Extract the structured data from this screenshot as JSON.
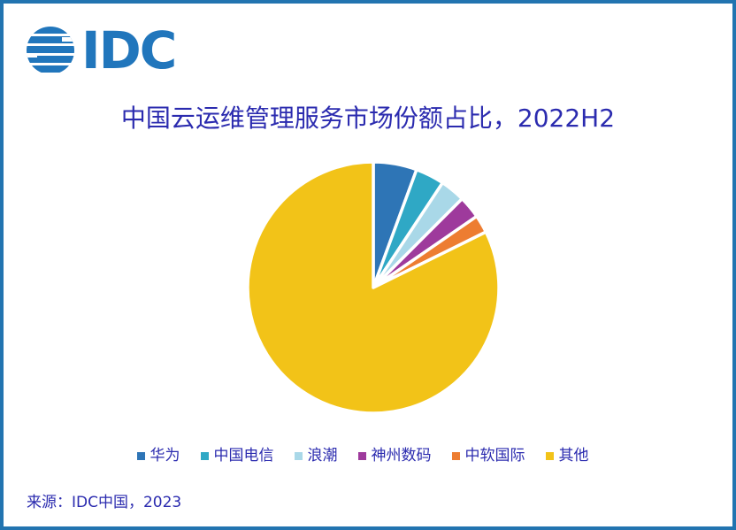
{
  "logo": {
    "text": "IDC"
  },
  "chart_data": {
    "type": "pie",
    "title": "中国云运维管理服务市场份额占比，2022H2",
    "unit": "percent (share, estimated from slice angles; no data labels shown)",
    "start_angle_deg": 0,
    "direction": "clockwise",
    "legend_position": "bottom",
    "categories": [
      "华为",
      "中国电信",
      "浪潮",
      "神州数码",
      "中软国际",
      "其他"
    ],
    "values": [
      5.6,
      3.7,
      3.2,
      2.9,
      2.3,
      82.3
    ],
    "colors": [
      "#2E75B6",
      "#2FA8C5",
      "#A9D8E8",
      "#9E3A9C",
      "#ED7D31",
      "#F2C318"
    ]
  },
  "footer": {
    "source": "来源：IDC中国，2023"
  },
  "theme": {
    "frame_border": "#2274B0",
    "logo_blue": "#2176BC",
    "text_blue": "#2B2BAF",
    "slice_gap_color": "#FFFFFF",
    "background": "#FFFFFF"
  }
}
